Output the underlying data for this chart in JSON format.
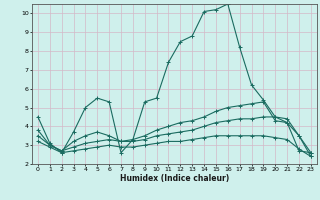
{
  "xlabel": "Humidex (Indice chaleur)",
  "bg_color": "#cff0ec",
  "grid_color": "#d4b8c8",
  "line_color": "#1a6b60",
  "xlim": [
    -0.5,
    23.5
  ],
  "ylim": [
    2,
    10.5
  ],
  "xticks": [
    0,
    1,
    2,
    3,
    4,
    5,
    6,
    7,
    8,
    9,
    10,
    11,
    12,
    13,
    14,
    15,
    16,
    17,
    18,
    19,
    20,
    21,
    22,
    23
  ],
  "yticks": [
    2,
    3,
    4,
    5,
    6,
    7,
    8,
    9,
    10
  ],
  "line1_x": [
    0,
    1,
    2,
    3,
    4,
    5,
    6,
    7,
    8,
    9,
    10,
    11,
    12,
    13,
    14,
    15,
    16,
    17,
    18,
    19,
    20,
    21,
    22,
    23
  ],
  "line1_y": [
    4.5,
    3.1,
    2.6,
    3.7,
    5.0,
    5.5,
    5.3,
    2.6,
    3.3,
    5.3,
    5.5,
    7.4,
    8.5,
    8.8,
    10.1,
    10.2,
    10.5,
    8.2,
    6.2,
    5.4,
    4.5,
    4.2,
    3.5,
    2.4
  ],
  "line2_x": [
    0,
    1,
    2,
    3,
    4,
    5,
    6,
    7,
    8,
    9,
    10,
    11,
    12,
    13,
    14,
    15,
    16,
    17,
    18,
    19,
    20,
    21,
    22,
    23
  ],
  "line2_y": [
    3.8,
    3.0,
    2.7,
    3.2,
    3.5,
    3.7,
    3.5,
    3.2,
    3.3,
    3.5,
    3.8,
    4.0,
    4.2,
    4.3,
    4.5,
    4.8,
    5.0,
    5.1,
    5.2,
    5.3,
    4.3,
    4.2,
    2.7,
    2.6
  ],
  "line3_x": [
    0,
    1,
    2,
    3,
    4,
    5,
    6,
    7,
    8,
    9,
    10,
    11,
    12,
    13,
    14,
    15,
    16,
    17,
    18,
    19,
    20,
    21,
    22,
    23
  ],
  "line3_y": [
    3.5,
    3.0,
    2.7,
    2.9,
    3.1,
    3.2,
    3.3,
    3.2,
    3.2,
    3.3,
    3.5,
    3.6,
    3.7,
    3.8,
    4.0,
    4.2,
    4.3,
    4.4,
    4.4,
    4.5,
    4.5,
    4.4,
    3.5,
    2.6
  ],
  "line4_x": [
    0,
    1,
    2,
    3,
    4,
    5,
    6,
    7,
    8,
    9,
    10,
    11,
    12,
    13,
    14,
    15,
    16,
    17,
    18,
    19,
    20,
    21,
    22,
    23
  ],
  "line4_y": [
    3.2,
    2.9,
    2.6,
    2.7,
    2.8,
    2.9,
    3.0,
    2.9,
    2.9,
    3.0,
    3.1,
    3.2,
    3.2,
    3.3,
    3.4,
    3.5,
    3.5,
    3.5,
    3.5,
    3.5,
    3.4,
    3.3,
    2.8,
    2.4
  ]
}
